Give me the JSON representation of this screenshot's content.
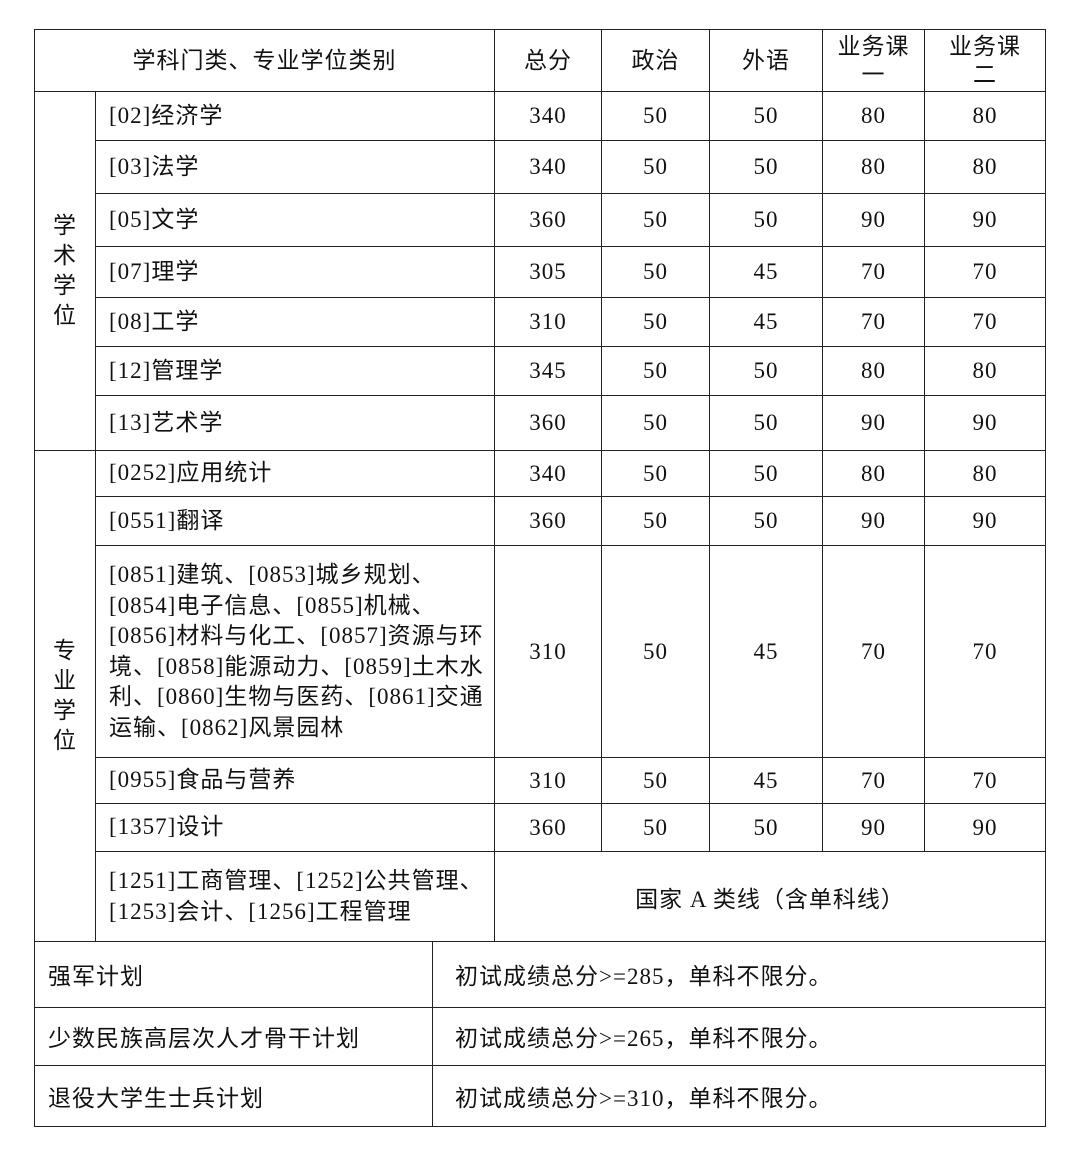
{
  "header": {
    "category": "学科门类、专业学位类别",
    "columns": [
      "总分",
      "政治",
      "外语",
      "业务课一",
      "业务课二"
    ]
  },
  "groups": [
    {
      "label": "学术学位",
      "rows": [
        {
          "name": "[02]经济学",
          "values": [
            "340",
            "50",
            "50",
            "80",
            "80"
          ]
        },
        {
          "name": "[03]法学",
          "values": [
            "340",
            "50",
            "50",
            "80",
            "80"
          ]
        },
        {
          "name": "[05]文学",
          "values": [
            "360",
            "50",
            "50",
            "90",
            "90"
          ]
        },
        {
          "name": "[07]理学",
          "values": [
            "305",
            "50",
            "45",
            "70",
            "70"
          ]
        },
        {
          "name": "[08]工学",
          "values": [
            "310",
            "50",
            "45",
            "70",
            "70"
          ]
        },
        {
          "name": "[12]管理学",
          "values": [
            "345",
            "50",
            "50",
            "80",
            "80"
          ]
        },
        {
          "name": "[13]艺术学",
          "values": [
            "360",
            "50",
            "50",
            "90",
            "90"
          ]
        }
      ]
    },
    {
      "label": "专业学位",
      "rows": [
        {
          "name": "[0252]应用统计",
          "values": [
            "340",
            "50",
            "50",
            "80",
            "80"
          ]
        },
        {
          "name": "[0551]翻译",
          "values": [
            "360",
            "50",
            "50",
            "90",
            "90"
          ]
        },
        {
          "name": "[0851]建筑、[0853]城乡规划、[0854]电子信息、[0855]机械、[0856]材料与化工、[0857]资源与环境、[0858]能源动力、[0859]土木水利、[0860]生物与医药、[0861]交通运输、[0862]风景园林",
          "values": [
            "310",
            "50",
            "45",
            "70",
            "70"
          ]
        },
        {
          "name": "[0955]食品与营养",
          "values": [
            "310",
            "50",
            "45",
            "70",
            "70"
          ]
        },
        {
          "name": "[1357]设计",
          "values": [
            "360",
            "50",
            "50",
            "90",
            "90"
          ]
        },
        {
          "name": "[1251]工商管理、[1252]公共管理、[1253]会计、[1256]工程管理",
          "merged": "国家 A 类线（含单科线）"
        }
      ]
    }
  ],
  "plans": [
    {
      "name": "强军计划",
      "rule": "初试成绩总分>=285，单科不限分。"
    },
    {
      "name": "少数民族高层次人才骨干计划",
      "rule": "初试成绩总分>=265，单科不限分。"
    },
    {
      "name": "退役大学生士兵计划",
      "rule": "初试成绩总分>=310，单科不限分。"
    }
  ]
}
